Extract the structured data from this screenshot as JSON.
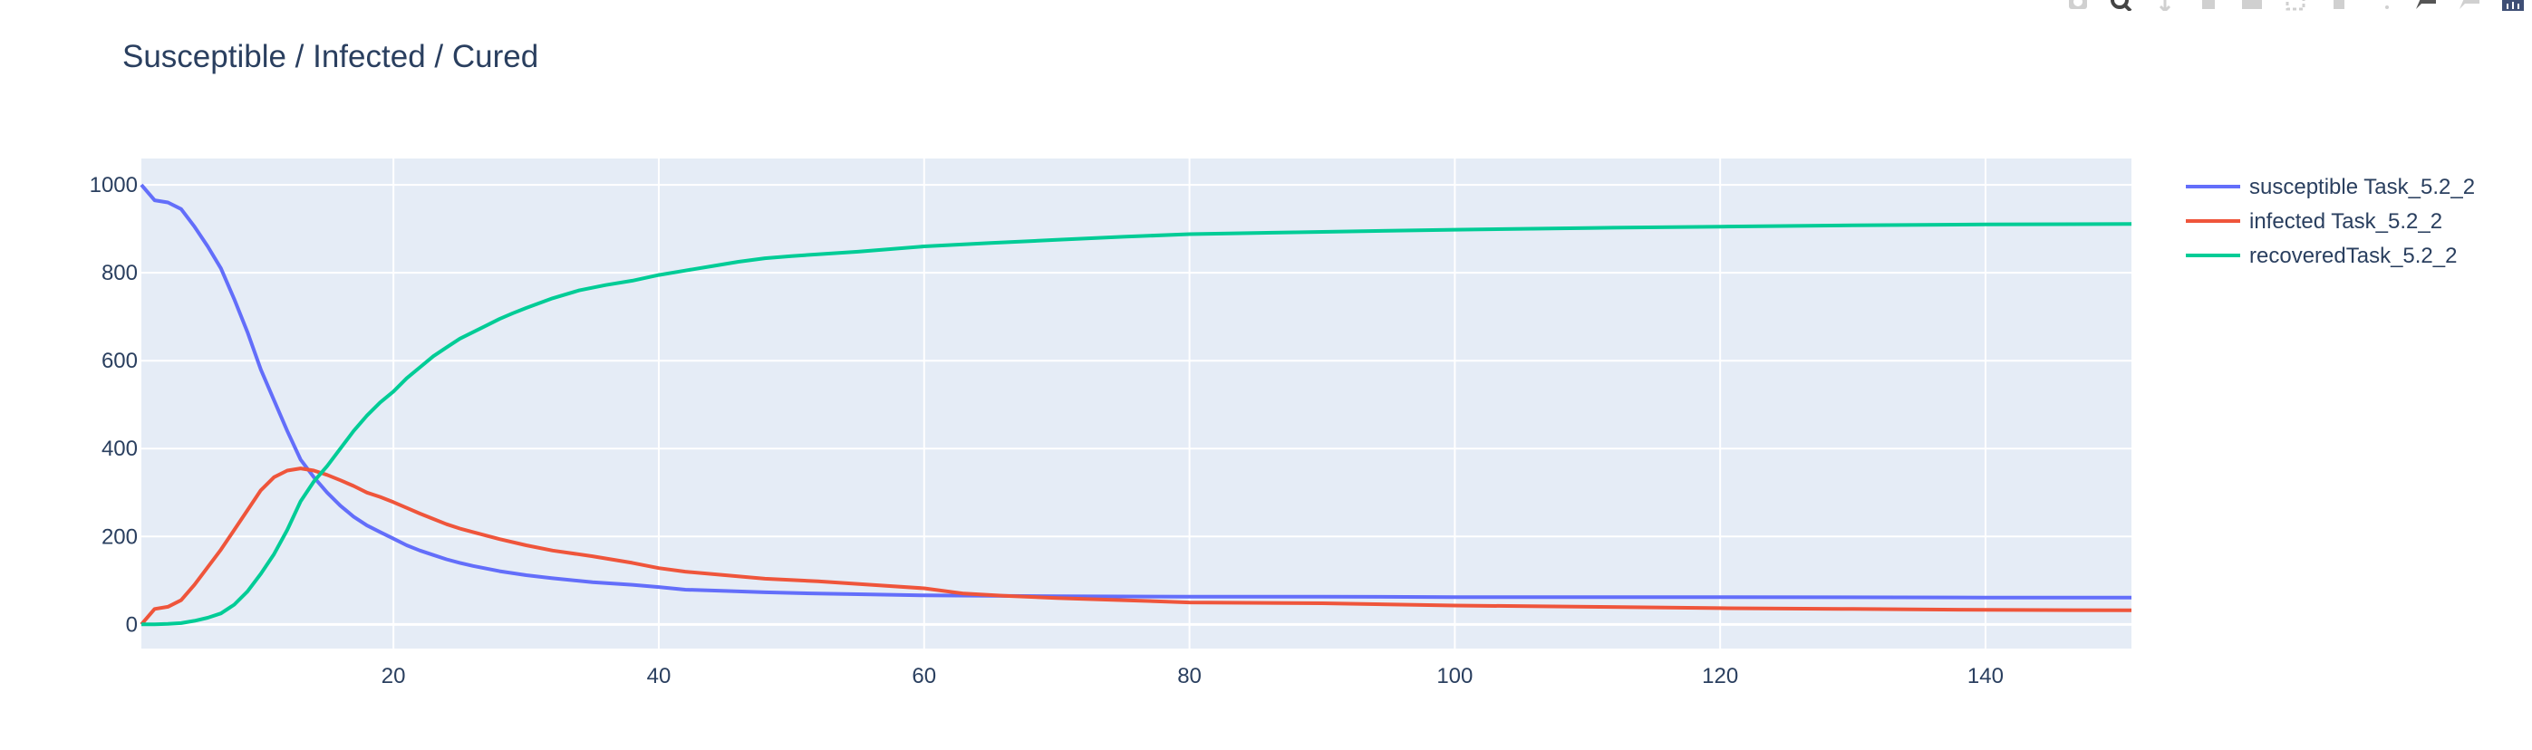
{
  "chart_data": {
    "type": "line",
    "title": "Susceptible / Infected / Cured",
    "xlabel": "",
    "ylabel": "",
    "xlim": [
      1,
      151
    ],
    "ylim": [
      -55,
      1060
    ],
    "x_ticks": [
      20,
      40,
      60,
      80,
      100,
      120,
      140
    ],
    "x_tick_labels": [
      "20",
      "40",
      "60",
      "80",
      "100",
      "120",
      "140"
    ],
    "y_ticks": [
      0,
      200,
      400,
      600,
      800,
      1000
    ],
    "y_tick_labels": [
      "0",
      "200",
      "400",
      "600",
      "800",
      "1000"
    ],
    "grid": true,
    "legend_position": "right",
    "series": [
      {
        "name": "susceptible Task_5.2_2",
        "color": "#636efa",
        "points": [
          [
            1,
            1000
          ],
          [
            2,
            965
          ],
          [
            3,
            960
          ],
          [
            4,
            945
          ],
          [
            5,
            905
          ],
          [
            6,
            860
          ],
          [
            7,
            810
          ],
          [
            8,
            740
          ],
          [
            9,
            665
          ],
          [
            10,
            580
          ],
          [
            11,
            510
          ],
          [
            12,
            440
          ],
          [
            13,
            375
          ],
          [
            14,
            335
          ],
          [
            15,
            300
          ],
          [
            16,
            270
          ],
          [
            17,
            245
          ],
          [
            18,
            225
          ],
          [
            19,
            210
          ],
          [
            20,
            195
          ],
          [
            21,
            180
          ],
          [
            22,
            168
          ],
          [
            23,
            158
          ],
          [
            24,
            148
          ],
          [
            25,
            140
          ],
          [
            26,
            133
          ],
          [
            27,
            127
          ],
          [
            28,
            121
          ],
          [
            30,
            112
          ],
          [
            32,
            105
          ],
          [
            35,
            96
          ],
          [
            38,
            90
          ],
          [
            40,
            85
          ],
          [
            42,
            79
          ],
          [
            45,
            76
          ],
          [
            48,
            73
          ],
          [
            52,
            70
          ],
          [
            56,
            68
          ],
          [
            60,
            66
          ],
          [
            65,
            65
          ],
          [
            70,
            64
          ],
          [
            80,
            63
          ],
          [
            90,
            63
          ],
          [
            100,
            62
          ],
          [
            120,
            62
          ],
          [
            140,
            61
          ],
          [
            151,
            61
          ]
        ]
      },
      {
        "name": "infected Task_5.2_2",
        "color": "#ef553b",
        "points": [
          [
            1,
            0
          ],
          [
            2,
            35
          ],
          [
            3,
            40
          ],
          [
            4,
            55
          ],
          [
            5,
            90
          ],
          [
            6,
            130
          ],
          [
            7,
            170
          ],
          [
            8,
            215
          ],
          [
            9,
            260
          ],
          [
            10,
            305
          ],
          [
            11,
            335
          ],
          [
            12,
            350
          ],
          [
            13,
            355
          ],
          [
            14,
            350
          ],
          [
            15,
            340
          ],
          [
            16,
            328
          ],
          [
            17,
            315
          ],
          [
            18,
            300
          ],
          [
            19,
            290
          ],
          [
            20,
            278
          ],
          [
            21,
            265
          ],
          [
            22,
            252
          ],
          [
            23,
            240
          ],
          [
            24,
            228
          ],
          [
            25,
            218
          ],
          [
            26,
            210
          ],
          [
            27,
            202
          ],
          [
            28,
            194
          ],
          [
            30,
            180
          ],
          [
            32,
            168
          ],
          [
            35,
            155
          ],
          [
            38,
            140
          ],
          [
            40,
            128
          ],
          [
            42,
            120
          ],
          [
            45,
            112
          ],
          [
            48,
            104
          ],
          [
            52,
            98
          ],
          [
            56,
            90
          ],
          [
            60,
            82
          ],
          [
            63,
            70
          ],
          [
            66,
            65
          ],
          [
            70,
            60
          ],
          [
            75,
            55
          ],
          [
            80,
            50
          ],
          [
            90,
            48
          ],
          [
            100,
            43
          ],
          [
            110,
            40
          ],
          [
            120,
            37
          ],
          [
            130,
            35
          ],
          [
            140,
            33
          ],
          [
            151,
            32
          ]
        ]
      },
      {
        "name": "recoveredTask_5.2_2",
        "color": "#00cc96",
        "points": [
          [
            1,
            0
          ],
          [
            2,
            0
          ],
          [
            3,
            1
          ],
          [
            4,
            3
          ],
          [
            5,
            8
          ],
          [
            6,
            15
          ],
          [
            7,
            25
          ],
          [
            8,
            45
          ],
          [
            9,
            75
          ],
          [
            10,
            115
          ],
          [
            11,
            160
          ],
          [
            12,
            215
          ],
          [
            13,
            280
          ],
          [
            14,
            325
          ],
          [
            15,
            360
          ],
          [
            16,
            400
          ],
          [
            17,
            440
          ],
          [
            18,
            475
          ],
          [
            19,
            505
          ],
          [
            20,
            530
          ],
          [
            21,
            560
          ],
          [
            22,
            585
          ],
          [
            23,
            610
          ],
          [
            24,
            630
          ],
          [
            25,
            650
          ],
          [
            26,
            665
          ],
          [
            27,
            680
          ],
          [
            28,
            695
          ],
          [
            29,
            708
          ],
          [
            30,
            720
          ],
          [
            32,
            742
          ],
          [
            34,
            760
          ],
          [
            36,
            772
          ],
          [
            38,
            782
          ],
          [
            40,
            795
          ],
          [
            42,
            805
          ],
          [
            44,
            815
          ],
          [
            46,
            825
          ],
          [
            48,
            833
          ],
          [
            50,
            838
          ],
          [
            55,
            848
          ],
          [
            60,
            860
          ],
          [
            65,
            868
          ],
          [
            70,
            875
          ],
          [
            75,
            882
          ],
          [
            80,
            888
          ],
          [
            90,
            893
          ],
          [
            100,
            898
          ],
          [
            110,
            902
          ],
          [
            120,
            905
          ],
          [
            130,
            908
          ],
          [
            140,
            910
          ],
          [
            151,
            911
          ]
        ]
      }
    ]
  },
  "modebar": {
    "icons": [
      "camera-icon",
      "zoom-icon",
      "pan-icon",
      "zoom-in-icon",
      "zoom-out-icon",
      "autoscale-icon",
      "home-icon",
      "spike-lines-icon",
      "hover-closest-icon",
      "hover-compare-icon",
      "plotly-logo-icon"
    ]
  }
}
